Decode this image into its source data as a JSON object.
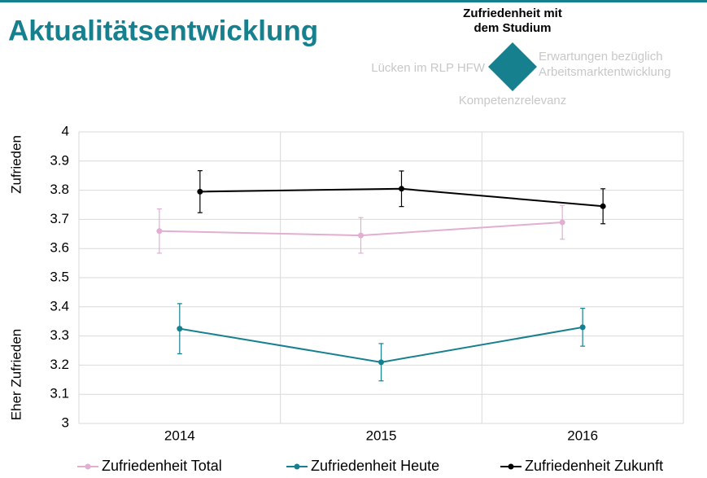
{
  "title": "Aktualitätsentwicklung",
  "navigation": {
    "top": "Zufriedenheit mit dem Studium",
    "left": "Lücken im RLP HFW",
    "right": "Erwartungen bezüglich Arbeitsmarktentwicklung",
    "bottom": "Kompetenzrelevanz"
  },
  "chart_data": {
    "type": "line",
    "categories": [
      "2014",
      "2015",
      "2016"
    ],
    "series": [
      {
        "name": "Zufriedenheit Total",
        "color": "#e2aed2",
        "values": [
          3.66,
          3.645,
          3.69
        ],
        "errors": [
          0.076,
          0.061,
          0.058
        ]
      },
      {
        "name": "Zufriedenheit Heute",
        "color": "#17808f",
        "values": [
          3.325,
          3.21,
          3.33
        ],
        "errors": [
          0.086,
          0.064,
          0.065
        ]
      },
      {
        "name": "Zufriedenheit Zukunft",
        "color": "#000000",
        "values": [
          3.795,
          3.805,
          3.745
        ],
        "errors": [
          0.072,
          0.061,
          0.06
        ]
      }
    ],
    "y_annotations": [
      "Zufrieden",
      "Eher Zufrieden"
    ],
    "ylim": [
      3,
      4
    ],
    "yticks": [
      3,
      3.1,
      3.2,
      3.3,
      3.4,
      3.5,
      3.6,
      3.7,
      3.8,
      3.9,
      4
    ],
    "grid": true,
    "legend": "bottom"
  }
}
